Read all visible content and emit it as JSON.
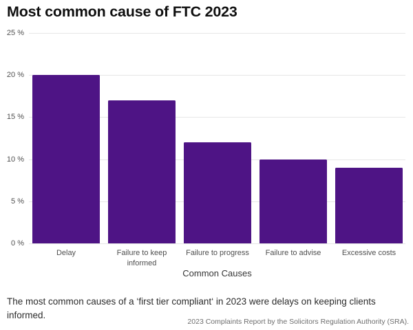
{
  "header": {
    "title": "Most common cause of FTC 2023"
  },
  "chart_data": {
    "type": "bar",
    "title": "Most common cause of FTC 2023",
    "categories": [
      "Delay",
      "Failure to keep informed",
      "Failure to progress",
      "Failure to advise",
      "Excessive costs"
    ],
    "values": [
      20,
      17,
      12,
      10,
      9
    ],
    "unit": "%",
    "xlabel": "Common Causes",
    "ylabel": "",
    "ylim": [
      0,
      25
    ],
    "yticks": [
      25,
      20,
      15,
      10,
      5,
      0
    ],
    "ytick_labels": [
      "25 %",
      "20 %",
      "15 %",
      "10 %",
      "5 %",
      "0 %"
    ],
    "grid": "horizontal",
    "legend": "none",
    "bar_color": "#4e1485"
  },
  "caption": {
    "text": "The most common causes of a ‘first tier compliant‘ in 2023 were delays on keeping clients informed."
  },
  "source": {
    "text": "2023 Complaints Report by the Solicitors Regulation Authority (SRA)."
  },
  "colors": {
    "background": "#ffffff",
    "bar": "#4e1485",
    "gridline": "#e6e6e6",
    "tick_label": "#4f4f4f",
    "category_label": "#4d4d4d",
    "axis_title": "#333333",
    "title": "#0f0f0f",
    "caption": "#2b2b2b",
    "source": "#6e6e6e"
  }
}
